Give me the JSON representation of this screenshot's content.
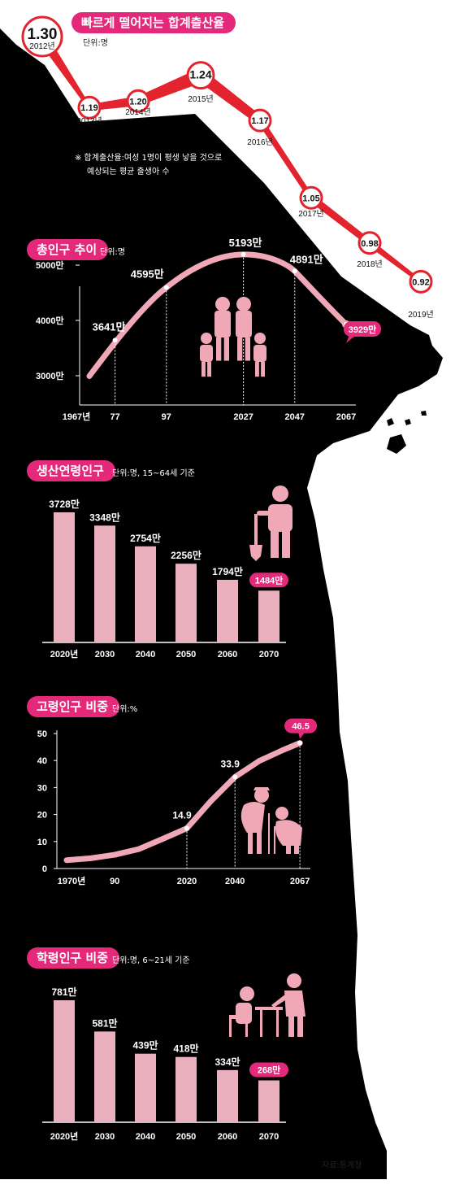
{
  "colors": {
    "bg": "#000000",
    "accent": "#e4287a",
    "band": "#e3242f",
    "line": "#f0a7b6",
    "bar": "#eab0bd"
  },
  "tfr": {
    "title": "빠르게 떨어지는 합계출산율",
    "unit": "단위:명",
    "note_line1": "※ 합계출산율:여성 1명이 평생 낳을 것으로",
    "note_line2": "예상되는 평균 출생아 수",
    "chart_data": {
      "type": "line",
      "title": "빠르게 떨어지는 합계출산율",
      "unit": "명",
      "x": [
        "2012년",
        "2013년",
        "2014년",
        "2015년",
        "2016년",
        "2017년",
        "2018년",
        "2019년"
      ],
      "values": [
        1.3,
        1.19,
        1.2,
        1.24,
        1.17,
        1.05,
        0.98,
        0.92
      ],
      "value_labels": [
        "1.30",
        "1.19",
        "1.20",
        "1.24",
        "1.17",
        "1.05",
        "0.98",
        "0.92"
      ]
    }
  },
  "pop": {
    "title": "총인구 추이",
    "unit": "단위:명",
    "chart_data": {
      "type": "line",
      "title": "총인구 추이",
      "unit": "명",
      "x": [
        1967,
        1977,
        1997,
        2027,
        2047,
        2067
      ],
      "x_labels": [
        "1967년",
        "77",
        "97",
        "2027",
        "2047",
        "2067"
      ],
      "values": [
        2993,
        3641,
        4595,
        5193,
        4891,
        3929
      ],
      "value_labels": [
        "",
        "3641만",
        "4595만",
        "5193만",
        "4891만",
        "3929만"
      ],
      "yticks": [
        3000,
        4000,
        5000
      ],
      "ytick_labels": [
        "3000만",
        "4000만",
        "5000만"
      ],
      "ylim": [
        3000,
        5300
      ],
      "highlight": "3929만"
    }
  },
  "work": {
    "title": "생산연령인구",
    "unit": "단위:명, 15~64세 기준",
    "chart_data": {
      "type": "bar",
      "title": "생산연령인구",
      "unit": "명",
      "categories": [
        "2020년",
        "2030",
        "2040",
        "2050",
        "2060",
        "2070"
      ],
      "values": [
        3728,
        3348,
        2754,
        2256,
        1794,
        1484
      ],
      "value_labels": [
        "3728만",
        "3348만",
        "2754만",
        "2256만",
        "1794만",
        "1484만"
      ],
      "highlight": "1484만"
    }
  },
  "elder": {
    "title": "고령인구 비중",
    "unit": "단위:%",
    "chart_data": {
      "type": "line",
      "title": "고령인구 비중",
      "unit": "%",
      "x": [
        1970,
        1980,
        1990,
        2000,
        2010,
        2020,
        2030,
        2040,
        2050,
        2060,
        2067
      ],
      "x_labels": [
        "1970년",
        "90",
        "2020",
        "2040",
        "2067"
      ],
      "x_label_years": [
        1970,
        1990,
        2020,
        2040,
        2067
      ],
      "values": [
        3.1,
        3.8,
        5.1,
        7.2,
        11.0,
        14.9,
        25.0,
        33.9,
        39.8,
        43.9,
        46.5
      ],
      "labelled_points": [
        [
          2020,
          "14.9"
        ],
        [
          2040,
          "33.9"
        ],
        [
          2067,
          "46.5"
        ]
      ],
      "yticks": [
        0,
        10,
        20,
        30,
        40,
        50
      ],
      "ylim": [
        0,
        50
      ],
      "highlight": "46.5"
    }
  },
  "school": {
    "title": "학령인구 비중",
    "unit": "단위:명, 6~21세 기준",
    "chart_data": {
      "type": "bar",
      "title": "학령인구 비중",
      "unit": "명",
      "categories": [
        "2020년",
        "2030",
        "2040",
        "2050",
        "2060",
        "2070"
      ],
      "values": [
        781,
        581,
        439,
        418,
        334,
        268
      ],
      "value_labels": [
        "781만",
        "581만",
        "439만",
        "418만",
        "334만",
        "268만"
      ],
      "highlight": "268만"
    }
  },
  "source": "자료:통계청"
}
